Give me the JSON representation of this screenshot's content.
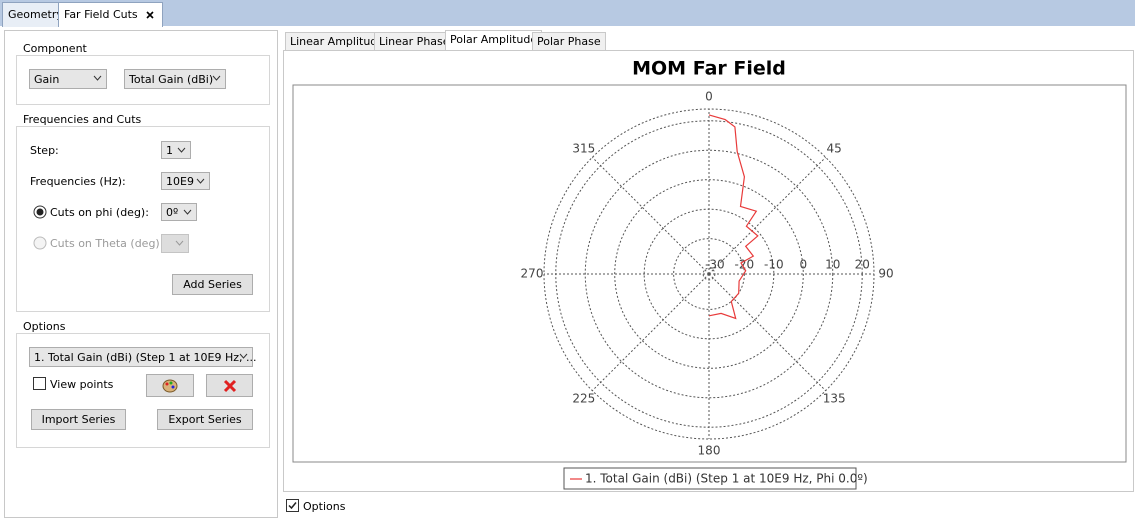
{
  "top_tabs": [
    "Geometry",
    "Far Field Cuts"
  ],
  "left": {
    "component": {
      "title": "Component",
      "quantity": "Gain",
      "unit": "Total Gain (dBi)"
    },
    "freq": {
      "title": "Frequencies and Cuts",
      "step_label": "Step:",
      "step": "1",
      "freq_label": "Frequencies (Hz):",
      "freq": "10E9",
      "phi_label": "Cuts on phi (deg):",
      "phi": "0º",
      "theta_label": "Cuts on Theta (deg):",
      "add": "Add Series"
    },
    "options": {
      "title": "Options",
      "series": "1. Total Gain (dBi) (Step 1 at 10E9 Hz, ...",
      "view_points": "View points",
      "import": "Import Series",
      "export": "Export Series"
    }
  },
  "chart_tabs": [
    "Linear Amplitude",
    "Linear Phase",
    "Polar Amplitude",
    "Polar Phase"
  ],
  "chart_data": {
    "type": "polar",
    "title": "MOM Far Field",
    "series": [
      {
        "name": "1. Total Gain (dBi) (Step 1 at 10E9 Hz, Phi 0.0º)",
        "color": "#e83a3a",
        "theta": [
          0,
          6,
          10,
          13,
          20,
          25,
          37,
          38,
          52,
          53,
          68,
          71,
          85,
          103,
          123,
          141,
          149,
          163,
          180
        ],
        "values": [
          22,
          20.7,
          18.7,
          10.6,
          3.1,
          -6.7,
          -5.3,
          -11.4,
          -11,
          -16.4,
          -15.8,
          -20.5,
          -19.5,
          -21.5,
          -20,
          -20,
          -14.4,
          -18,
          -17.8
        ]
      }
    ],
    "rlim": [
      -32,
      24
    ],
    "rticks": [
      -30,
      -20,
      -10,
      0,
      10,
      20
    ],
    "angle_ticks": [
      0,
      45,
      90,
      135,
      180,
      225,
      270,
      315
    ]
  },
  "options_check": "Options"
}
